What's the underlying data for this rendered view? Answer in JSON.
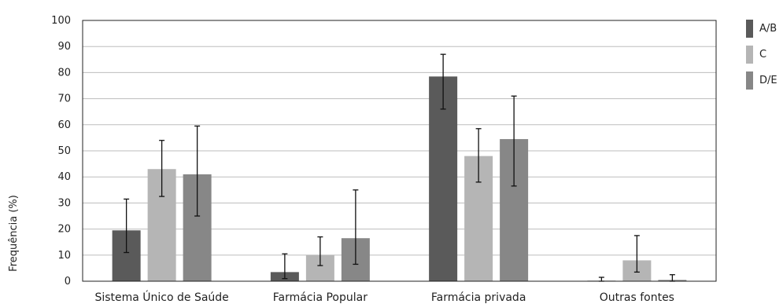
{
  "chart_data": {
    "type": "bar",
    "categories": [
      "Sistema Único de Saúde",
      "Farmácia Popular",
      "Farmácia privada",
      "Outras fontes"
    ],
    "series": [
      {
        "name": "A/B",
        "color": "#5a5a5a",
        "values": [
          19.5,
          3.5,
          78.5,
          0.2
        ],
        "err_low": [
          11.0,
          1.0,
          66.0,
          0.0
        ],
        "err_high": [
          31.5,
          10.5,
          87.0,
          1.5
        ]
      },
      {
        "name": "C",
        "color": "#b5b5b5",
        "values": [
          43.0,
          10.0,
          48.0,
          8.0
        ],
        "err_low": [
          32.5,
          6.0,
          38.0,
          3.5
        ],
        "err_high": [
          54.0,
          17.0,
          58.5,
          17.5
        ]
      },
      {
        "name": "D/E",
        "color": "#878787",
        "values": [
          41.0,
          16.5,
          54.5,
          0.5
        ],
        "err_low": [
          25.0,
          6.5,
          36.5,
          0.0
        ],
        "err_high": [
          59.5,
          35.0,
          71.0,
          2.5
        ]
      }
    ],
    "yticks": [
      0,
      10,
      20,
      30,
      40,
      50,
      60,
      70,
      80,
      90,
      100
    ],
    "ylim": [
      0,
      100
    ],
    "ylabel": "Frequência (%)",
    "xlabel": "",
    "grid": true,
    "legend": "top-right"
  }
}
